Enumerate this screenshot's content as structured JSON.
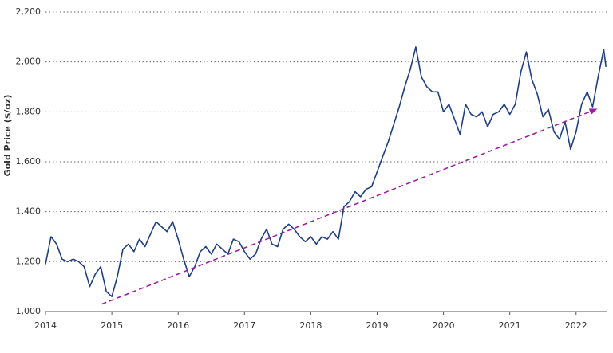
{
  "chart_data": {
    "type": "line",
    "y_label": "Gold Price ($/oz)",
    "xlim": [
      2014,
      2022.46
    ],
    "xticks": [
      2014,
      2015,
      2016,
      2017,
      2018,
      2019,
      2020,
      2021,
      2022
    ],
    "ylim": [
      1000,
      2200
    ],
    "yticks": [
      {
        "value": 1000,
        "label": "1,000"
      },
      {
        "value": 1200,
        "label": "1,200"
      },
      {
        "value": 1400,
        "label": "1,400"
      },
      {
        "value": 1600,
        "label": "1,600"
      },
      {
        "value": 1800,
        "label": "1,800"
      },
      {
        "value": 2000,
        "label": "2,000"
      },
      {
        "value": 2200,
        "label": "2,200"
      }
    ],
    "grid": true,
    "x": [
      2014.0,
      2014.083,
      2014.167,
      2014.25,
      2014.333,
      2014.417,
      2014.5,
      2014.583,
      2014.667,
      2014.75,
      2014.833,
      2014.917,
      2015.0,
      2015.083,
      2015.167,
      2015.25,
      2015.333,
      2015.417,
      2015.5,
      2015.583,
      2015.667,
      2015.75,
      2015.833,
      2015.917,
      2016.0,
      2016.083,
      2016.167,
      2016.25,
      2016.333,
      2016.417,
      2016.5,
      2016.583,
      2016.667,
      2016.75,
      2016.833,
      2016.917,
      2017.0,
      2017.083,
      2017.167,
      2017.25,
      2017.333,
      2017.417,
      2017.5,
      2017.583,
      2017.667,
      2017.75,
      2017.833,
      2017.917,
      2018.0,
      2018.083,
      2018.167,
      2018.25,
      2018.333,
      2018.417,
      2018.5,
      2018.583,
      2018.667,
      2018.75,
      2018.833,
      2018.917,
      2019.0,
      2019.083,
      2019.167,
      2019.25,
      2019.333,
      2019.417,
      2019.5,
      2019.583,
      2019.667,
      2019.75,
      2019.833,
      2019.917,
      2020.0,
      2020.083,
      2020.167,
      2020.25,
      2020.333,
      2020.417,
      2020.5,
      2020.583,
      2020.667,
      2020.75,
      2020.833,
      2020.917,
      2021.0,
      2021.083,
      2021.167,
      2021.25,
      2021.333,
      2021.417,
      2021.5,
      2021.583,
      2021.667,
      2021.75,
      2021.833,
      2021.917,
      2022.0,
      2022.083,
      2022.167,
      2022.25,
      2022.333,
      2022.417,
      2022.45
    ],
    "series": [
      {
        "color": "#1f3f82",
        "values": [
          1190,
          1300,
          1270,
          1210,
          1200,
          1210,
          1200,
          1180,
          1100,
          1150,
          1180,
          1080,
          1060,
          1140,
          1250,
          1270,
          1240,
          1290,
          1260,
          1310,
          1360,
          1340,
          1320,
          1360,
          1290,
          1210,
          1140,
          1180,
          1240,
          1260,
          1230,
          1270,
          1250,
          1230,
          1290,
          1280,
          1240,
          1210,
          1230,
          1290,
          1330,
          1270,
          1260,
          1330,
          1350,
          1330,
          1300,
          1280,
          1300,
          1270,
          1300,
          1290,
          1320,
          1290,
          1420,
          1440,
          1480,
          1460,
          1490,
          1500,
          1560,
          1620,
          1680,
          1750,
          1820,
          1900,
          1970,
          2060,
          1940,
          1900,
          1880,
          1880,
          1800,
          1830,
          1770,
          1710,
          1830,
          1790,
          1780,
          1800,
          1740,
          1790,
          1800,
          1830,
          1790,
          1830,
          1960,
          2040,
          1930,
          1870,
          1780,
          1810,
          1720,
          1690,
          1760,
          1650,
          1720,
          1830,
          1880,
          1820,
          1940,
          2050,
          1980
        ]
      }
    ],
    "trend_arrow": {
      "x": [
        2014.85,
        2022.3
      ],
      "values": [
        1030,
        1810
      ],
      "color": "#9b1fa3"
    }
  }
}
